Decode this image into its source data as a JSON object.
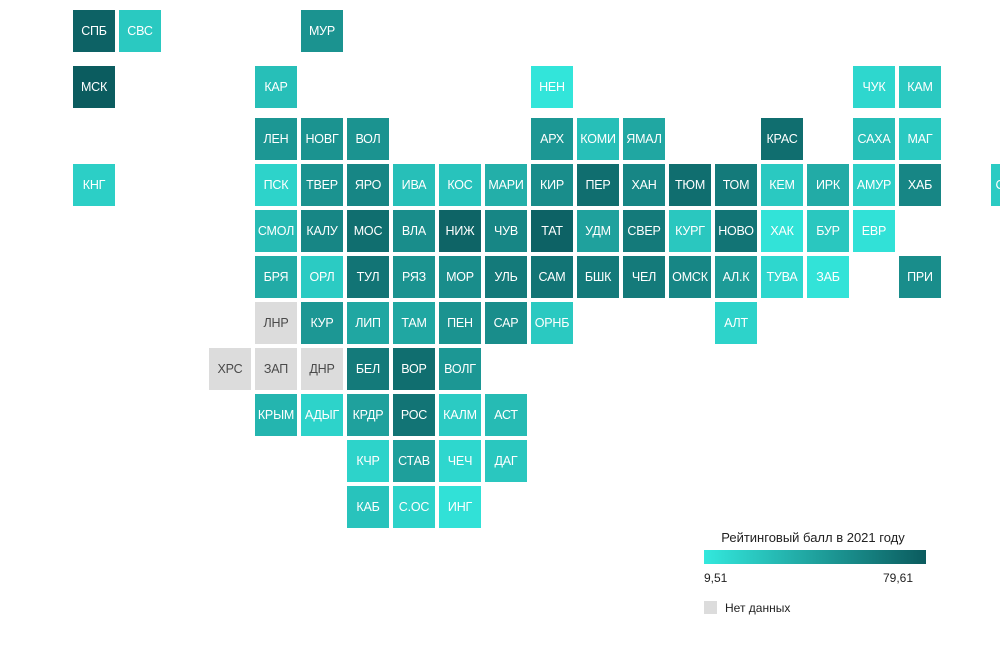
{
  "palette": {
    "low": "#33e8dd",
    "high": "#0b5b5e",
    "nodata": "#dcdcdc"
  },
  "legend": {
    "title": "Рейтинговый балл в 2021 году",
    "min_label": "9,51",
    "max_label": "79,61",
    "min": 9.51,
    "max": 79.61,
    "nodata_label": "Нет данных"
  },
  "regions": [
    {
      "label": "СПБ",
      "col": 0,
      "row": 0,
      "value": 76
    },
    {
      "label": "СВС",
      "col": 1,
      "row": 0,
      "value": 25
    },
    {
      "label": "МУР",
      "col": 4,
      "row": 0,
      "value": 52
    },
    {
      "label": "МСК",
      "col": 0,
      "row": 1,
      "value": 79
    },
    {
      "label": "КАР",
      "col": 3,
      "row": 1,
      "value": 30
    },
    {
      "label": "НЕН",
      "col": 9,
      "row": 1,
      "value": 11
    },
    {
      "label": "ЧУК",
      "col": 16,
      "row": 1,
      "value": 18
    },
    {
      "label": "КАМ",
      "col": 17,
      "row": 1,
      "value": 25
    },
    {
      "label": "ЛЕН",
      "col": 2,
      "row": 2,
      "value": 50
    },
    {
      "label": "НОВГ",
      "col": 3,
      "row": 2,
      "value": 52
    },
    {
      "label": "ВОЛ",
      "col": 4,
      "row": 2,
      "value": 52
    },
    {
      "label": "АРХ",
      "col": 8,
      "row": 2,
      "value": 50
    },
    {
      "label": "КОМИ",
      "col": 9,
      "row": 2,
      "value": 30
    },
    {
      "label": "ЯМАЛ",
      "col": 10,
      "row": 2,
      "value": 42
    },
    {
      "label": "КРАС",
      "col": 13,
      "row": 2,
      "value": 70
    },
    {
      "label": "САХА",
      "col": 15,
      "row": 2,
      "value": 30
    },
    {
      "label": "МАГ",
      "col": 16,
      "row": 2,
      "value": 25
    },
    {
      "label": "КНГ",
      "col": -2,
      "row": 3,
      "value": 22
    },
    {
      "label": "ПСК",
      "col": 2,
      "row": 3,
      "value": 20
    },
    {
      "label": "ТВЕР",
      "col": 3,
      "row": 3,
      "value": 52
    },
    {
      "label": "ЯРО",
      "col": 4,
      "row": 3,
      "value": 58
    },
    {
      "label": "ИВА",
      "col": 5,
      "row": 3,
      "value": 30
    },
    {
      "label": "КОС",
      "col": 6,
      "row": 3,
      "value": 28
    },
    {
      "label": "МАРИ",
      "col": 7,
      "row": 3,
      "value": 38
    },
    {
      "label": "КИР",
      "col": 8,
      "row": 3,
      "value": 55
    },
    {
      "label": "ПЕР",
      "col": 9,
      "row": 3,
      "value": 70
    },
    {
      "label": "ХАН",
      "col": 10,
      "row": 3,
      "value": 58
    },
    {
      "label": "ТЮМ",
      "col": 11,
      "row": 3,
      "value": 70
    },
    {
      "label": "ТОМ",
      "col": 12,
      "row": 3,
      "value": 64
    },
    {
      "label": "КЕМ",
      "col": 13,
      "row": 3,
      "value": 25
    },
    {
      "label": "ИРК",
      "col": 14,
      "row": 3,
      "value": 40
    },
    {
      "label": "АМУР",
      "col": 15,
      "row": 3,
      "value": 22
    },
    {
      "label": "ХАБ",
      "col": 16,
      "row": 3,
      "value": 58
    },
    {
      "label": "СХЛН",
      "col": 18,
      "row": 3,
      "value": 24
    },
    {
      "label": "СМОЛ",
      "col": 2,
      "row": 4,
      "value": 32
    },
    {
      "label": "КАЛУ",
      "col": 3,
      "row": 4,
      "value": 58
    },
    {
      "label": "МОС",
      "col": 4,
      "row": 4,
      "value": 70
    },
    {
      "label": "ВЛА",
      "col": 5,
      "row": 4,
      "value": 55
    },
    {
      "label": "НИЖ",
      "col": 6,
      "row": 4,
      "value": 75
    },
    {
      "label": "ЧУВ",
      "col": 7,
      "row": 4,
      "value": 58
    },
    {
      "label": "ТАТ",
      "col": 8,
      "row": 4,
      "value": 76
    },
    {
      "label": "УДМ",
      "col": 9,
      "row": 4,
      "value": 45
    },
    {
      "label": "СВЕР",
      "col": 10,
      "row": 4,
      "value": 64
    },
    {
      "label": "КУРГ",
      "col": 11,
      "row": 4,
      "value": 26
    },
    {
      "label": "НОВО",
      "col": 12,
      "row": 4,
      "value": 67
    },
    {
      "label": "ХАК",
      "col": 13,
      "row": 4,
      "value": 12
    },
    {
      "label": "БУР",
      "col": 14,
      "row": 4,
      "value": 26
    },
    {
      "label": "ЕВР",
      "col": 15,
      "row": 4,
      "value": 13
    },
    {
      "label": "БРЯ",
      "col": 2,
      "row": 5,
      "value": 40
    },
    {
      "label": "ОРЛ",
      "col": 3,
      "row": 5,
      "value": 24
    },
    {
      "label": "ТУЛ",
      "col": 4,
      "row": 5,
      "value": 67
    },
    {
      "label": "РЯЗ",
      "col": 5,
      "row": 5,
      "value": 52
    },
    {
      "label": "МОР",
      "col": 6,
      "row": 5,
      "value": 55
    },
    {
      "label": "УЛЬ",
      "col": 7,
      "row": 5,
      "value": 64
    },
    {
      "label": "САМ",
      "col": 8,
      "row": 5,
      "value": 67
    },
    {
      "label": "БШК",
      "col": 9,
      "row": 5,
      "value": 64
    },
    {
      "label": "ЧЕЛ",
      "col": 10,
      "row": 5,
      "value": 64
    },
    {
      "label": "ОМСК",
      "col": 11,
      "row": 5,
      "value": 58
    },
    {
      "label": "АЛ.К",
      "col": 12,
      "row": 5,
      "value": 48
    },
    {
      "label": "ТУВА",
      "col": 13,
      "row": 5,
      "value": 18
    },
    {
      "label": "ЗАБ",
      "col": 14,
      "row": 5,
      "value": 12
    },
    {
      "label": "ПРИ",
      "col": 16,
      "row": 5,
      "value": 55
    },
    {
      "label": "ЛНР",
      "col": 2,
      "row": 6,
      "value": null
    },
    {
      "label": "КУР",
      "col": 3,
      "row": 6,
      "value": 50
    },
    {
      "label": "ЛИП",
      "col": 4,
      "row": 6,
      "value": 42
    },
    {
      "label": "ТАМ",
      "col": 5,
      "row": 6,
      "value": 42
    },
    {
      "label": "ПЕН",
      "col": 6,
      "row": 6,
      "value": 52
    },
    {
      "label": "САР",
      "col": 7,
      "row": 6,
      "value": 55
    },
    {
      "label": "ОРНБ",
      "col": 8,
      "row": 6,
      "value": 25
    },
    {
      "label": "АЛТ",
      "col": 12,
      "row": 6,
      "value": 20
    },
    {
      "label": "ХРС",
      "col": 1,
      "row": 7,
      "value": null
    },
    {
      "label": "ЗАП",
      "col": 2,
      "row": 7,
      "value": null
    },
    {
      "label": "ДНР",
      "col": 3,
      "row": 7,
      "value": null
    },
    {
      "label": "БЕЛ",
      "col": 4,
      "row": 7,
      "value": 64
    },
    {
      "label": "ВОР",
      "col": 5,
      "row": 7,
      "value": 70
    },
    {
      "label": "ВОЛГ",
      "col": 6,
      "row": 7,
      "value": 50
    },
    {
      "label": "КРЫМ",
      "col": 2,
      "row": 8,
      "value": 35
    },
    {
      "label": "АДЫГ",
      "col": 3,
      "row": 8,
      "value": 20
    },
    {
      "label": "КРДР",
      "col": 4,
      "row": 8,
      "value": 45
    },
    {
      "label": "РОС",
      "col": 5,
      "row": 8,
      "value": 67
    },
    {
      "label": "КАЛМ",
      "col": 6,
      "row": 8,
      "value": 24
    },
    {
      "label": "АСТ",
      "col": 7,
      "row": 8,
      "value": 32
    },
    {
      "label": "КЧР",
      "col": 4,
      "row": 9,
      "value": 20
    },
    {
      "label": "СТАВ",
      "col": 5,
      "row": 9,
      "value": 46
    },
    {
      "label": "ЧЕЧ",
      "col": 6,
      "row": 9,
      "value": 18
    },
    {
      "label": "ДАГ",
      "col": 7,
      "row": 9,
      "value": 26
    },
    {
      "label": "КАБ",
      "col": 4,
      "row": 10,
      "value": 28
    },
    {
      "label": "С.ОС",
      "col": 5,
      "row": 10,
      "value": 20
    },
    {
      "label": "ИНГ",
      "col": 6,
      "row": 10,
      "value": 13
    }
  ]
}
